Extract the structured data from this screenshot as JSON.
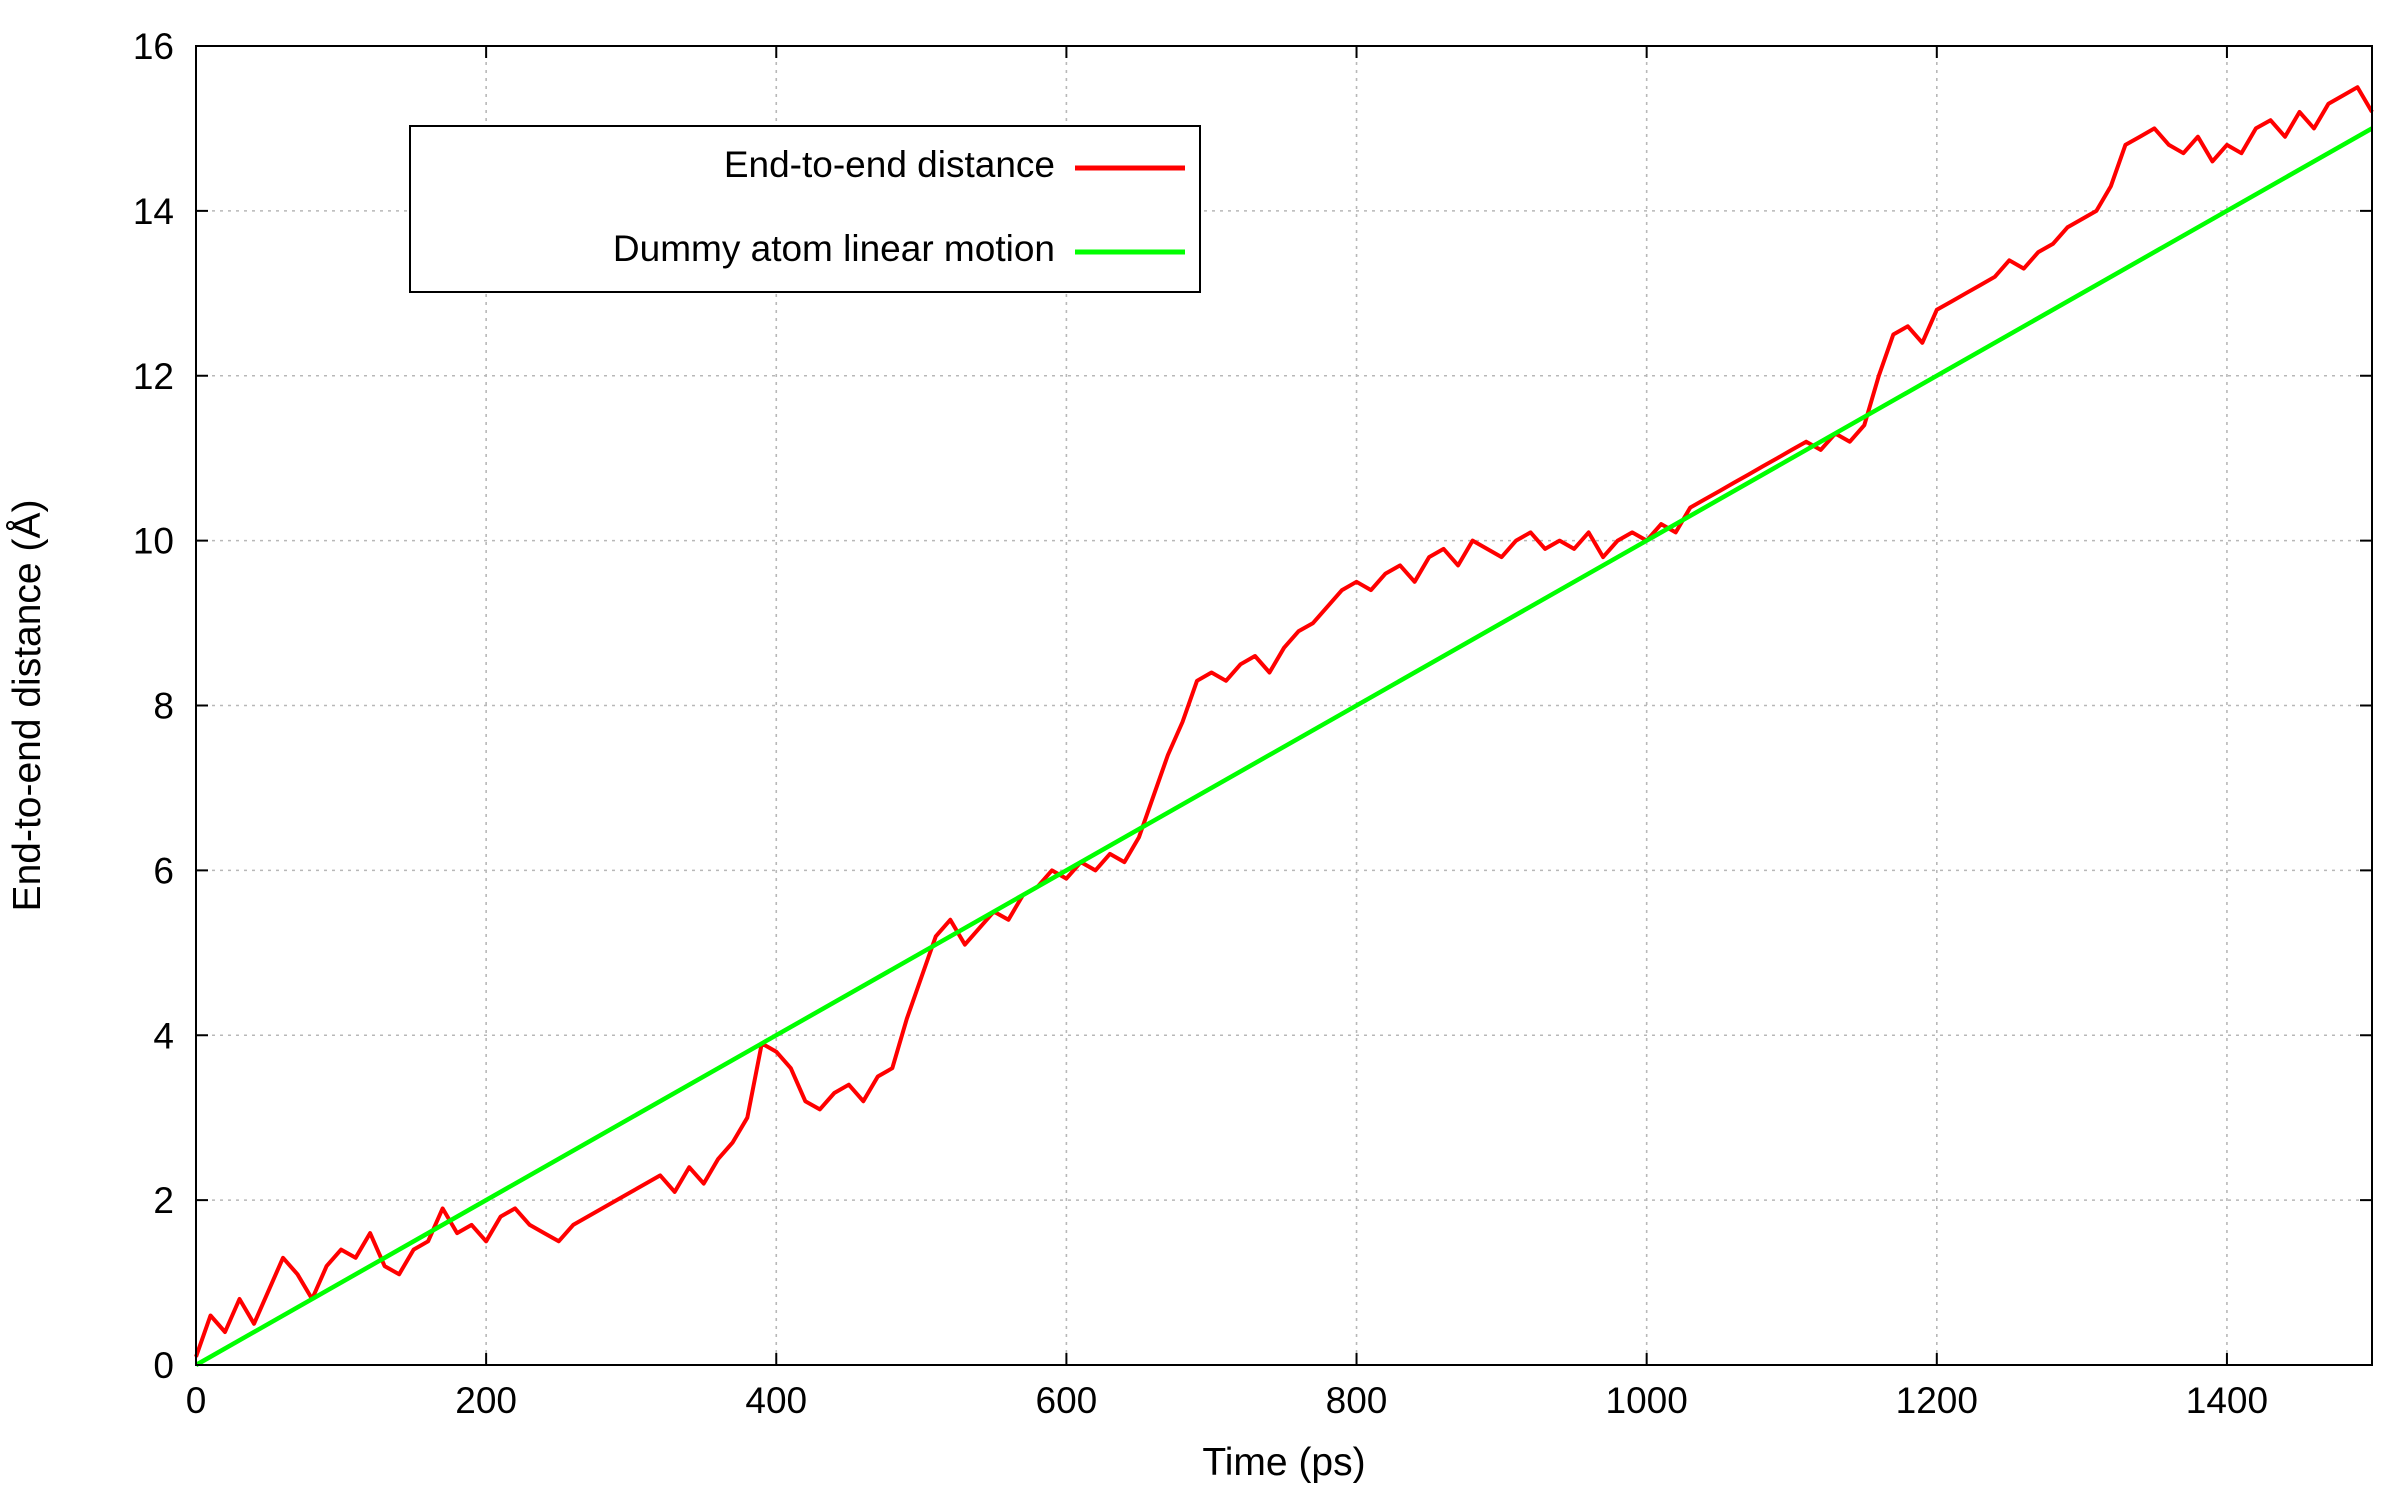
{
  "chart_data": {
    "type": "line",
    "title": "",
    "xlabel": "Time (ps)",
    "ylabel": "End-to-end distance (Å)",
    "xlim": [
      0,
      1500
    ],
    "ylim": [
      0,
      16
    ],
    "xticks": [
      0,
      200,
      400,
      600,
      800,
      1000,
      1200,
      1400
    ],
    "yticks": [
      0,
      2,
      4,
      6,
      8,
      10,
      12,
      14,
      16
    ],
    "grid": true,
    "legend_position": "top-left",
    "series": [
      {
        "name": "End-to-end distance",
        "color": "#ff0000",
        "x": [
          0,
          10,
          20,
          30,
          40,
          50,
          60,
          70,
          80,
          90,
          100,
          110,
          120,
          130,
          140,
          150,
          160,
          170,
          180,
          190,
          200,
          210,
          220,
          230,
          240,
          250,
          260,
          270,
          280,
          290,
          300,
          310,
          320,
          330,
          340,
          350,
          360,
          370,
          380,
          390,
          400,
          410,
          420,
          430,
          440,
          450,
          460,
          470,
          480,
          490,
          500,
          510,
          520,
          530,
          540,
          550,
          560,
          570,
          580,
          590,
          600,
          610,
          620,
          630,
          640,
          650,
          660,
          670,
          680,
          690,
          700,
          710,
          720,
          730,
          740,
          750,
          760,
          770,
          780,
          790,
          800,
          810,
          820,
          830,
          840,
          850,
          860,
          870,
          880,
          890,
          900,
          910,
          920,
          930,
          940,
          950,
          960,
          970,
          980,
          990,
          1000,
          1010,
          1020,
          1030,
          1040,
          1050,
          1060,
          1070,
          1080,
          1090,
          1100,
          1110,
          1120,
          1130,
          1140,
          1150,
          1160,
          1170,
          1180,
          1190,
          1200,
          1210,
          1220,
          1230,
          1240,
          1250,
          1260,
          1270,
          1280,
          1290,
          1300,
          1310,
          1320,
          1330,
          1340,
          1350,
          1360,
          1370,
          1380,
          1390,
          1400,
          1410,
          1420,
          1430,
          1440,
          1450,
          1460,
          1470,
          1480,
          1490,
          1500
        ],
        "y": [
          0.1,
          0.6,
          0.4,
          0.8,
          0.5,
          0.9,
          1.3,
          1.1,
          0.8,
          1.2,
          1.4,
          1.3,
          1.6,
          1.2,
          1.1,
          1.4,
          1.5,
          1.9,
          1.6,
          1.7,
          1.5,
          1.8,
          1.9,
          1.7,
          1.6,
          1.5,
          1.7,
          1.8,
          1.9,
          2.0,
          2.1,
          2.2,
          2.3,
          2.1,
          2.4,
          2.2,
          2.5,
          2.7,
          3.0,
          3.9,
          3.8,
          3.6,
          3.2,
          3.1,
          3.3,
          3.4,
          3.2,
          3.5,
          3.6,
          4.2,
          4.7,
          5.2,
          5.4,
          5.1,
          5.3,
          5.5,
          5.4,
          5.7,
          5.8,
          6.0,
          5.9,
          6.1,
          6.0,
          6.2,
          6.1,
          6.4,
          6.9,
          7.4,
          7.8,
          8.3,
          8.4,
          8.3,
          8.5,
          8.6,
          8.4,
          8.7,
          8.9,
          9.0,
          9.2,
          9.4,
          9.5,
          9.4,
          9.6,
          9.7,
          9.5,
          9.8,
          9.9,
          9.7,
          10.0,
          9.9,
          9.8,
          10.0,
          10.1,
          9.9,
          10.0,
          9.9,
          10.1,
          9.8,
          10.0,
          10.1,
          10.0,
          10.2,
          10.1,
          10.4,
          10.5,
          10.6,
          10.7,
          10.8,
          10.9,
          11.0,
          11.1,
          11.2,
          11.1,
          11.3,
          11.2,
          11.4,
          12.0,
          12.5,
          12.6,
          12.4,
          12.8,
          12.9,
          13.0,
          13.1,
          13.2,
          13.4,
          13.3,
          13.5,
          13.6,
          13.8,
          13.9,
          14.0,
          14.3,
          14.8,
          14.9,
          15.0,
          14.8,
          14.7,
          14.9,
          14.6,
          14.8,
          14.7,
          15.0,
          15.1,
          14.9,
          15.2,
          15.0,
          15.3,
          15.4,
          15.5,
          15.2
        ]
      },
      {
        "name": "Dummy atom linear motion",
        "color": "#00ff00",
        "x": [
          0,
          1500
        ],
        "y": [
          0,
          15
        ]
      }
    ]
  }
}
